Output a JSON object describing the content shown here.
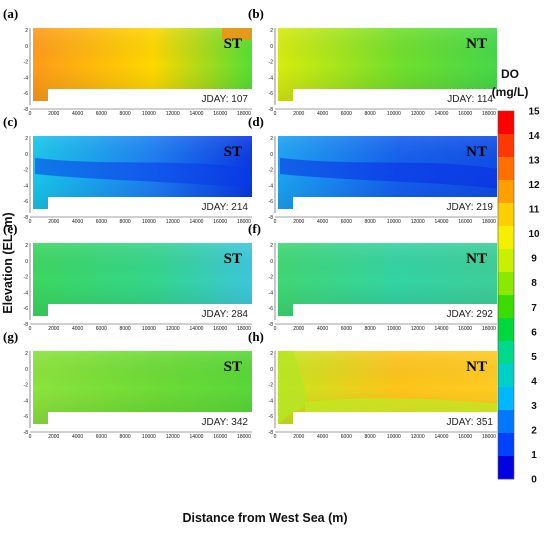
{
  "figure": {
    "xlabel": "Distance from West Sea (m)",
    "ylabel": "Elevation (EL. m)",
    "colorbar": {
      "title_line1": "DO",
      "title_line2": "(mg/L)",
      "ticks": [
        "15",
        "14",
        "13",
        "12",
        "11",
        "10",
        "9",
        "8",
        "7",
        "6",
        "5",
        "4",
        "3",
        "2",
        "1",
        "0"
      ],
      "colors": [
        "#ff0000",
        "#ff3800",
        "#ff7000",
        "#ffa000",
        "#ffd000",
        "#f4f000",
        "#c8f000",
        "#8ce800",
        "#3cdc00",
        "#00d840",
        "#00d88c",
        "#00d0c8",
        "#00b8ff",
        "#0078ff",
        "#0040ff",
        "#0000e0"
      ]
    }
  },
  "chart_data": [
    {
      "type": "heatmap",
      "panel": "(a)",
      "title": "ST",
      "annotation": "JDAY: 107",
      "xticks": [
        "0",
        "2000",
        "4000",
        "6000",
        "8000",
        "10000",
        "12000",
        "14000",
        "16000",
        "18000"
      ],
      "yticks": [
        "2",
        "0",
        "-2",
        "-4",
        "-6",
        "-8"
      ],
      "xlim": [
        0,
        18500
      ],
      "ylim": [
        -8,
        2.5
      ],
      "value_range_mg_per_L": [
        9,
        13
      ],
      "colors": {
        "left": "#ff9c1a",
        "mid": "#ffd800",
        "right": "#54e034"
      }
    },
    {
      "type": "heatmap",
      "panel": "(b)",
      "title": "NT",
      "annotation": "JDAY: 114",
      "xticks": [
        "0",
        "2000",
        "4000",
        "6000",
        "8000",
        "10000",
        "12000",
        "14000",
        "16000",
        "18000"
      ],
      "yticks": [
        "2",
        "0",
        "-2",
        "-4",
        "-6",
        "-8"
      ],
      "xlim": [
        0,
        18500
      ],
      "ylim": [
        -8,
        2.5
      ],
      "value_range_mg_per_L": [
        9,
        11
      ],
      "colors": {
        "left": "#d8ec10",
        "mid": "#72e02c",
        "right": "#46d84a"
      }
    },
    {
      "type": "heatmap",
      "panel": "(c)",
      "title": "ST",
      "annotation": "JDAY: 214",
      "xticks": [
        "0",
        "2000",
        "4000",
        "6000",
        "8000",
        "10000",
        "12000",
        "14000",
        "16000",
        "18000"
      ],
      "yticks": [
        "2",
        "0",
        "-2",
        "-4",
        "-6",
        "-8"
      ],
      "xlim": [
        0,
        18500
      ],
      "ylim": [
        -8,
        2.5
      ],
      "value_range_mg_per_L": [
        1,
        5
      ],
      "colors": {
        "left": "#18c8ec",
        "mid": "#1c7ef4",
        "right": "#0a38e4"
      }
    },
    {
      "type": "heatmap",
      "panel": "(d)",
      "title": "NT",
      "annotation": "JDAY: 219",
      "xticks": [
        "0",
        "2000",
        "4000",
        "6000",
        "8000",
        "10000",
        "12000",
        "14000",
        "16000",
        "18000"
      ],
      "yticks": [
        "2",
        "0",
        "-2",
        "-4",
        "-6",
        "-8"
      ],
      "xlim": [
        0,
        18500
      ],
      "ylim": [
        -8,
        2.5
      ],
      "value_range_mg_per_L": [
        1,
        5
      ],
      "colors": {
        "left": "#1ca4f4",
        "mid": "#1460f0",
        "right": "#0e4ee8"
      }
    },
    {
      "type": "heatmap",
      "panel": "(e)",
      "title": "ST",
      "annotation": "JDAY: 284",
      "xticks": [
        "0",
        "2000",
        "4000",
        "6000",
        "8000",
        "10000",
        "12000",
        "14000",
        "16000",
        "18000"
      ],
      "yticks": [
        "2",
        "0",
        "-2",
        "-4",
        "-6",
        "-8"
      ],
      "xlim": [
        0,
        18500
      ],
      "ylim": [
        -8,
        2.5
      ],
      "value_range_mg_per_L": [
        5,
        8
      ],
      "colors": {
        "left": "#3cd860",
        "mid": "#34d68c",
        "right": "#3cc8dc"
      }
    },
    {
      "type": "heatmap",
      "panel": "(f)",
      "title": "NT",
      "annotation": "JDAY: 292",
      "xticks": [
        "0",
        "2000",
        "4000",
        "6000",
        "8000",
        "10000",
        "12000",
        "14000",
        "16000",
        "18000"
      ],
      "yticks": [
        "2",
        "0",
        "-2",
        "-4",
        "-6",
        "-8"
      ],
      "xlim": [
        0,
        18500
      ],
      "ylim": [
        -8,
        2.5
      ],
      "value_range_mg_per_L": [
        5,
        8
      ],
      "colors": {
        "left": "#40d874",
        "mid": "#34d4a4",
        "right": "#3ecf9a"
      }
    },
    {
      "type": "heatmap",
      "panel": "(g)",
      "title": "ST",
      "annotation": "JDAY: 342",
      "xticks": [
        "0",
        "2000",
        "4000",
        "6000",
        "8000",
        "10000",
        "12000",
        "14000",
        "16000",
        "18000"
      ],
      "yticks": [
        "2",
        "0",
        "-2",
        "-4",
        "-6",
        "-8"
      ],
      "xlim": [
        0,
        18500
      ],
      "ylim": [
        -8,
        2.5
      ],
      "value_range_mg_per_L": [
        8,
        10
      ],
      "colors": {
        "left": "#8ce43c",
        "mid": "#6edc36",
        "right": "#58d838"
      }
    },
    {
      "type": "heatmap",
      "panel": "(h)",
      "title": "NT",
      "annotation": "JDAY: 351",
      "xticks": [
        "0",
        "2000",
        "4000",
        "6000",
        "8000",
        "10000",
        "12000",
        "14000",
        "16000",
        "18000"
      ],
      "yticks": [
        "2",
        "0",
        "-2",
        "-4",
        "-6",
        "-8"
      ],
      "xlim": [
        0,
        18500
      ],
      "ylim": [
        -8,
        2.5
      ],
      "value_range_mg_per_L": [
        9,
        12
      ],
      "colors": {
        "left": "#c8e820",
        "mid": "#ffc41c",
        "right": "#ffcc22"
      }
    }
  ]
}
